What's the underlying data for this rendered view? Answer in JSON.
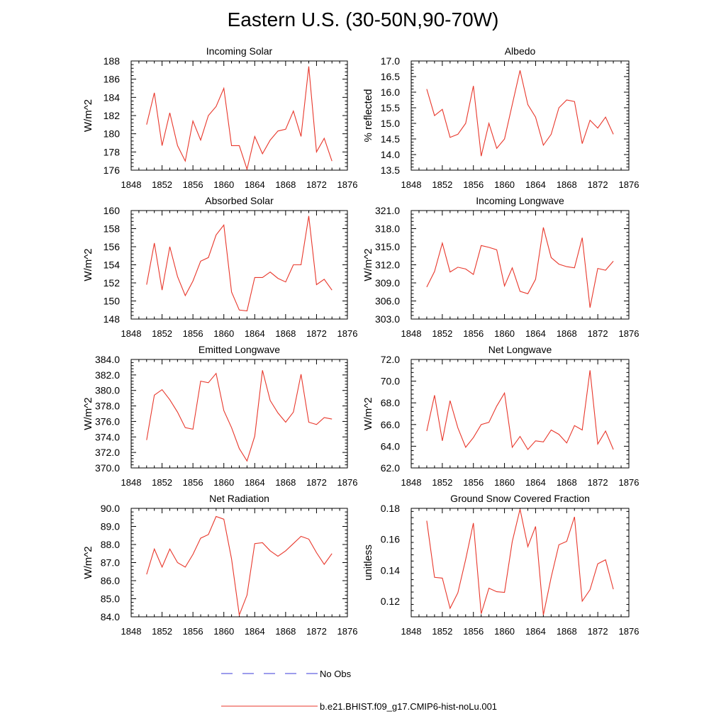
{
  "figure": {
    "title": "Eastern U.S. (30-50N,90-70W)",
    "legend": [
      {
        "label": "No Obs",
        "color": "#3b3bd8",
        "style": "dashed"
      },
      {
        "label": "b.e21.BHIST.f09_g17.CMIP6-hist-noLu.001",
        "color": "#e8372b",
        "style": "solid"
      }
    ]
  },
  "chart_data": [
    {
      "type": "line",
      "title": "Incoming Solar",
      "ylabel": "W/m^2",
      "xlim": [
        1848,
        1876
      ],
      "xticks": [
        "1848",
        "1852",
        "1856",
        "1860",
        "1864",
        "1868",
        "1872",
        "1876"
      ],
      "ylim": [
        176,
        188
      ],
      "yticks": [
        "176",
        "178",
        "180",
        "182",
        "184",
        "186",
        "188"
      ],
      "series": [
        {
          "name": "b.e21.BHIST.f09_g17.CMIP6-hist-noLu.001",
          "color": "#e8372b",
          "x": [
            1850,
            1851,
            1852,
            1853,
            1854,
            1855,
            1856,
            1857,
            1858,
            1859,
            1860,
            1861,
            1862,
            1863,
            1864,
            1865,
            1866,
            1867,
            1868,
            1869,
            1870,
            1871,
            1872,
            1873,
            1874
          ],
          "y": [
            181.0,
            184.5,
            178.7,
            182.3,
            178.7,
            177.0,
            181.4,
            179.3,
            182.0,
            183.0,
            185.0,
            178.7,
            178.7,
            176.1,
            179.7,
            177.8,
            179.3,
            180.3,
            180.5,
            182.5,
            179.7,
            187.4,
            178.0,
            179.5,
            177.0
          ]
        }
      ]
    },
    {
      "type": "line",
      "title": "Albedo",
      "ylabel": "% reflected",
      "xlim": [
        1848,
        1876
      ],
      "xticks": [
        "1848",
        "1852",
        "1856",
        "1860",
        "1864",
        "1868",
        "1872",
        "1876"
      ],
      "ylim": [
        13.5,
        17.0
      ],
      "yticks": [
        "13.5",
        "14.0",
        "14.5",
        "15.0",
        "15.5",
        "16.0",
        "16.5",
        "17.0"
      ],
      "series": [
        {
          "name": "b.e21.BHIST.f09_g17.CMIP6-hist-noLu.001",
          "color": "#e8372b",
          "x": [
            1850,
            1851,
            1852,
            1853,
            1854,
            1855,
            1856,
            1857,
            1858,
            1859,
            1860,
            1861,
            1862,
            1863,
            1864,
            1865,
            1866,
            1867,
            1868,
            1869,
            1870,
            1871,
            1872,
            1873,
            1874
          ],
          "y": [
            16.1,
            15.25,
            15.45,
            14.55,
            14.65,
            15.0,
            16.2,
            13.95,
            15.0,
            14.2,
            14.5,
            15.6,
            16.7,
            15.6,
            15.2,
            14.3,
            14.65,
            15.5,
            15.75,
            15.7,
            14.35,
            15.1,
            14.85,
            15.2,
            14.65
          ]
        }
      ]
    },
    {
      "type": "line",
      "title": "Absorbed Solar",
      "ylabel": "W/m^2",
      "xlim": [
        1848,
        1876
      ],
      "xticks": [
        "1848",
        "1852",
        "1856",
        "1860",
        "1864",
        "1868",
        "1872",
        "1876"
      ],
      "ylim": [
        148,
        160
      ],
      "yticks": [
        "148",
        "150",
        "152",
        "154",
        "156",
        "158",
        "160"
      ],
      "series": [
        {
          "name": "b.e21.BHIST.f09_g17.CMIP6-hist-noLu.001",
          "color": "#e8372b",
          "x": [
            1850,
            1851,
            1852,
            1853,
            1854,
            1855,
            1856,
            1857,
            1858,
            1859,
            1860,
            1861,
            1862,
            1863,
            1864,
            1865,
            1866,
            1867,
            1868,
            1869,
            1870,
            1871,
            1872,
            1873,
            1874
          ],
          "y": [
            151.8,
            156.4,
            151.2,
            156.0,
            152.7,
            150.6,
            152.2,
            154.4,
            154.8,
            157.3,
            158.4,
            151.0,
            149.0,
            148.9,
            152.6,
            152.6,
            153.2,
            152.5,
            152.1,
            154.0,
            154.0,
            159.4,
            151.8,
            152.4,
            151.2
          ]
        }
      ]
    },
    {
      "type": "line",
      "title": "Incoming Longwave",
      "ylabel": "W/m^2",
      "xlim": [
        1848,
        1876
      ],
      "xticks": [
        "1848",
        "1852",
        "1856",
        "1860",
        "1864",
        "1868",
        "1872",
        "1876"
      ],
      "ylim": [
        303.0,
        321.0
      ],
      "yticks": [
        "303.0",
        "306.0",
        "309.0",
        "312.0",
        "315.0",
        "318.0",
        "321.0"
      ],
      "series": [
        {
          "name": "b.e21.BHIST.f09_g17.CMIP6-hist-noLu.001",
          "color": "#e8372b",
          "x": [
            1850,
            1851,
            1852,
            1853,
            1854,
            1855,
            1856,
            1857,
            1858,
            1859,
            1860,
            1861,
            1862,
            1863,
            1864,
            1865,
            1866,
            1867,
            1868,
            1869,
            1870,
            1871,
            1872,
            1873,
            1874
          ],
          "y": [
            308.3,
            310.9,
            315.6,
            310.8,
            311.6,
            311.3,
            310.4,
            315.2,
            314.9,
            314.5,
            308.5,
            311.5,
            307.6,
            307.2,
            309.6,
            318.2,
            313.2,
            312.1,
            311.7,
            311.5,
            316.5,
            304.9,
            311.4,
            311.1,
            312.6
          ]
        }
      ]
    },
    {
      "type": "line",
      "title": "Emitted Longwave",
      "ylabel": "W/m^2",
      "xlim": [
        1848,
        1876
      ],
      "xticks": [
        "1848",
        "1852",
        "1856",
        "1860",
        "1864",
        "1868",
        "1872",
        "1876"
      ],
      "ylim": [
        370.0,
        384.0
      ],
      "yticks": [
        "370.0",
        "372.0",
        "374.0",
        "376.0",
        "378.0",
        "380.0",
        "382.0",
        "384.0"
      ],
      "series": [
        {
          "name": "b.e21.BHIST.f09_g17.CMIP6-hist-noLu.001",
          "color": "#e8372b",
          "x": [
            1850,
            1851,
            1852,
            1853,
            1854,
            1855,
            1856,
            1857,
            1858,
            1859,
            1860,
            1861,
            1862,
            1863,
            1864,
            1865,
            1866,
            1867,
            1868,
            1869,
            1870,
            1871,
            1872,
            1873,
            1874
          ],
          "y": [
            373.6,
            379.4,
            380.1,
            378.8,
            377.2,
            375.2,
            375.0,
            381.2,
            381.0,
            382.2,
            377.4,
            375.2,
            372.5,
            370.9,
            374.1,
            382.6,
            378.7,
            377.1,
            375.9,
            377.2,
            382.1,
            375.9,
            375.6,
            376.5,
            376.3
          ]
        }
      ]
    },
    {
      "type": "line",
      "title": "Net Longwave",
      "ylabel": "W/m^2",
      "xlim": [
        1848,
        1876
      ],
      "xticks": [
        "1848",
        "1852",
        "1856",
        "1860",
        "1864",
        "1868",
        "1872",
        "1876"
      ],
      "ylim": [
        62.0,
        72.0
      ],
      "yticks": [
        "62.0",
        "64.0",
        "66.0",
        "68.0",
        "70.0",
        "72.0"
      ],
      "series": [
        {
          "name": "b.e21.BHIST.f09_g17.CMIP6-hist-noLu.001",
          "color": "#e8372b",
          "x": [
            1850,
            1851,
            1852,
            1853,
            1854,
            1855,
            1856,
            1857,
            1858,
            1859,
            1860,
            1861,
            1862,
            1863,
            1864,
            1865,
            1866,
            1867,
            1868,
            1869,
            1870,
            1871,
            1872,
            1873,
            1874
          ],
          "y": [
            65.4,
            68.7,
            64.5,
            68.2,
            65.7,
            63.9,
            64.8,
            66.0,
            66.2,
            67.7,
            68.9,
            63.9,
            64.9,
            63.7,
            64.5,
            64.4,
            65.5,
            65.1,
            64.3,
            65.9,
            65.5,
            71.0,
            64.2,
            65.4,
            63.7
          ]
        }
      ]
    },
    {
      "type": "line",
      "title": "Net Radiation",
      "ylabel": "W/m^2",
      "xlim": [
        1848,
        1876
      ],
      "xticks": [
        "1848",
        "1852",
        "1856",
        "1860",
        "1864",
        "1868",
        "1872",
        "1876"
      ],
      "ylim": [
        84.0,
        90.0
      ],
      "yticks": [
        "84.0",
        "85.0",
        "86.0",
        "87.0",
        "88.0",
        "89.0",
        "90.0"
      ],
      "series": [
        {
          "name": "b.e21.BHIST.f09_g17.CMIP6-hist-noLu.001",
          "color": "#e8372b",
          "x": [
            1850,
            1851,
            1852,
            1853,
            1854,
            1855,
            1856,
            1857,
            1858,
            1859,
            1860,
            1861,
            1862,
            1863,
            1864,
            1865,
            1866,
            1867,
            1868,
            1869,
            1870,
            1871,
            1872,
            1873,
            1874
          ],
          "y": [
            86.35,
            87.75,
            86.75,
            87.75,
            87.0,
            86.75,
            87.45,
            88.35,
            88.55,
            89.55,
            89.4,
            87.2,
            84.1,
            85.2,
            88.05,
            88.1,
            87.65,
            87.35,
            87.65,
            88.05,
            88.45,
            88.3,
            87.55,
            86.9,
            87.5
          ]
        }
      ]
    },
    {
      "type": "line",
      "title": "Ground Snow Covered Fraction",
      "ylabel": "unitless",
      "xlim": [
        1848,
        1876
      ],
      "xticks": [
        "1848",
        "1852",
        "1856",
        "1860",
        "1864",
        "1868",
        "1872",
        "1876"
      ],
      "ylim": [
        0.11,
        0.18
      ],
      "yticks": [
        "0.12",
        "0.14",
        "0.16",
        "0.18"
      ],
      "series": [
        {
          "name": "b.e21.BHIST.f09_g17.CMIP6-hist-noLu.001",
          "color": "#e8372b",
          "x": [
            1850,
            1851,
            1852,
            1853,
            1854,
            1855,
            1856,
            1857,
            1858,
            1859,
            1860,
            1861,
            1862,
            1863,
            1864,
            1865,
            1866,
            1867,
            1868,
            1869,
            1870,
            1871,
            1872,
            1873,
            1874
          ],
          "y": [
            0.172,
            0.1355,
            0.135,
            0.1155,
            0.1255,
            0.147,
            0.1705,
            0.112,
            0.1285,
            0.1262,
            0.1258,
            0.1585,
            0.1795,
            0.1553,
            0.1683,
            0.1112,
            0.1355,
            0.1565,
            0.1587,
            0.1745,
            0.1201,
            0.1275,
            0.1442,
            0.1468,
            0.1278
          ]
        }
      ]
    }
  ]
}
